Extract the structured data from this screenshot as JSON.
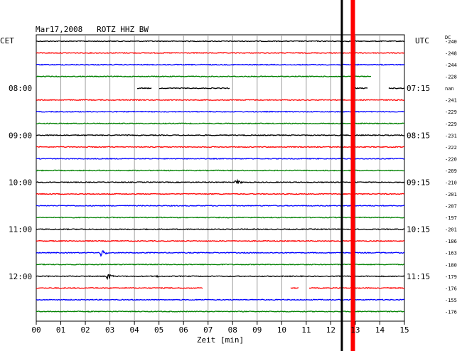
{
  "chart_data": {
    "type": "line",
    "title": "Mar17,2008   ROTZ HHZ BW",
    "xlabel": "Zeit [min]",
    "xlim": [
      0,
      15
    ],
    "x_ticks": [
      "00",
      "01",
      "02",
      "03",
      "04",
      "05",
      "06",
      "07",
      "08",
      "09",
      "10",
      "11",
      "12",
      "13",
      "14",
      "15"
    ],
    "left_timezone": "CET",
    "right_timezone": "UTC",
    "dc_header": "DC",
    "traces": [
      {
        "dc": "-240",
        "color": "#000000"
      },
      {
        "dc": "-248",
        "color": "#ff0000"
      },
      {
        "dc": "-244",
        "color": "#0000ff"
      },
      {
        "dc": "-228",
        "color": "#008000"
      },
      {
        "dc": "nan",
        "color": "#000000",
        "cet": "08:00",
        "utc": "07:15"
      },
      {
        "dc": "-241",
        "color": "#ff0000"
      },
      {
        "dc": "-229",
        "color": "#0000ff"
      },
      {
        "dc": "-229",
        "color": "#008000"
      },
      {
        "dc": "-231",
        "color": "#000000",
        "cet": "09:00",
        "utc": "08:15"
      },
      {
        "dc": "-222",
        "color": "#ff0000"
      },
      {
        "dc": "-220",
        "color": "#0000ff"
      },
      {
        "dc": "-209",
        "color": "#008000"
      },
      {
        "dc": "-210",
        "color": "#000000",
        "cet": "10:00",
        "utc": "09:15"
      },
      {
        "dc": "-201",
        "color": "#ff0000"
      },
      {
        "dc": "-207",
        "color": "#0000ff"
      },
      {
        "dc": "-197",
        "color": "#008000"
      },
      {
        "dc": "-201",
        "color": "#000000",
        "cet": "11:00",
        "utc": "10:15"
      },
      {
        "dc": "-186",
        "color": "#ff0000"
      },
      {
        "dc": "-163",
        "color": "#0000ff"
      },
      {
        "dc": "-180",
        "color": "#008000"
      },
      {
        "dc": "-179",
        "color": "#000000",
        "cet": "12:00",
        "utc": "11:15"
      },
      {
        "dc": "-176",
        "color": "#ff0000"
      },
      {
        "dc": "-155",
        "color": "#0000ff"
      },
      {
        "dc": "-176",
        "color": "#008000"
      }
    ],
    "gaps": [
      {
        "trace": 3,
        "from": 13.65,
        "to": 15
      },
      {
        "trace": 4,
        "from": 0,
        "to": 4.1
      },
      {
        "trace": 4,
        "from": 4.7,
        "to": 5.0
      },
      {
        "trace": 4,
        "from": 7.9,
        "to": 12.9
      },
      {
        "trace": 4,
        "from": 13.5,
        "to": 14.35
      },
      {
        "trace": 21,
        "from": 6.8,
        "to": 10.35
      },
      {
        "trace": 21,
        "from": 10.7,
        "to": 11.1
      }
    ],
    "events": [
      {
        "trace": 2,
        "at": 2.5,
        "amp": 1.5,
        "dur": 0.2
      },
      {
        "trace": 6,
        "at": 3.1,
        "amp": 1.5,
        "dur": 0.2
      },
      {
        "trace": 7,
        "at": 0.6,
        "amp": 1.5,
        "dur": 0.5
      },
      {
        "trace": 8,
        "at": 7.7,
        "amp": 1.2,
        "dur": 0.2
      },
      {
        "trace": 12,
        "at": 8.1,
        "amp": 6,
        "dur": 0.5
      },
      {
        "trace": 18,
        "at": 2.6,
        "amp": 9,
        "dur": 0.5
      },
      {
        "trace": 20,
        "at": 0.45,
        "amp": 2.2,
        "dur": 0.15
      },
      {
        "trace": 20,
        "at": 2.85,
        "amp": 8,
        "dur": 0.5
      },
      {
        "trace": 20,
        "at": 4.85,
        "amp": 4,
        "dur": 0.3
      },
      {
        "trace": 23,
        "at": 2.1,
        "amp": 2,
        "dur": 0.2
      }
    ],
    "markers": [
      {
        "at": 12.45,
        "color": "#000000"
      },
      {
        "at": 12.9,
        "color": "#ff0000"
      }
    ]
  }
}
